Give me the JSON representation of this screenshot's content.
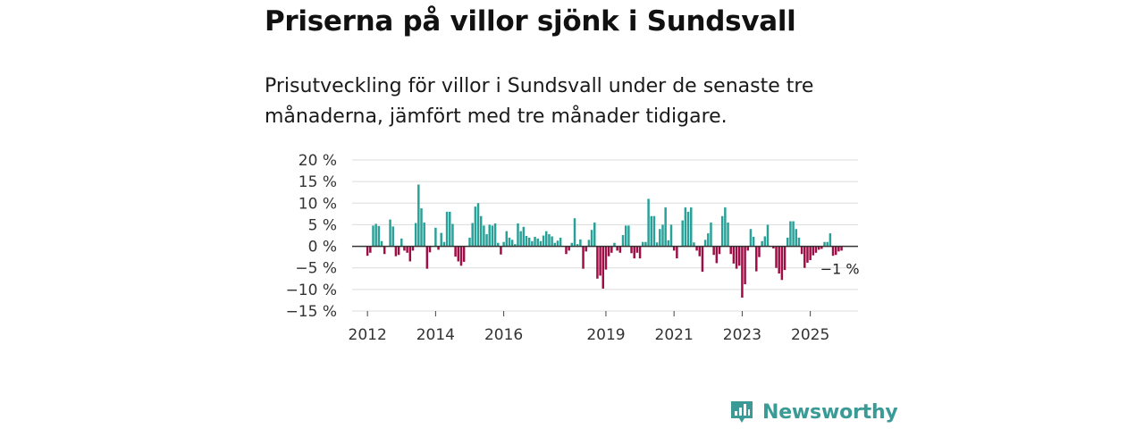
{
  "header": {
    "title": "Priserna på villor sjönk i Sundsvall",
    "subtitle": "Prisutveckling för villor i Sundsvall under de senaste tre månaderna, jämfört med tre månader tidigare."
  },
  "brand": {
    "name": "Newsworthy",
    "icon": "newsworthy-logo-icon"
  },
  "colors": {
    "positive": "#2aa198",
    "negative": "#9e0d45",
    "grid": "#dcdcdc",
    "zero": "#333333",
    "brand": "#3a9b96"
  },
  "chart_data": {
    "type": "bar",
    "title": "Priserna på villor sjönk i Sundsvall",
    "xlabel": "",
    "ylabel": "",
    "ylim": [
      -15,
      20
    ],
    "yticks": [
      20,
      15,
      10,
      5,
      0,
      -5,
      -10,
      -15
    ],
    "ytick_labels": [
      "20 %",
      "15 %",
      "10 %",
      "5 %",
      "0 %",
      "−5 %",
      "−10 %",
      "−15 %"
    ],
    "x_start": 2012.0,
    "x_step": 0.083333,
    "xlim": [
      2011.55,
      2026.4
    ],
    "xticks": [
      2012,
      2014,
      2016,
      2019,
      2021,
      2023,
      2025
    ],
    "xtick_labels": [
      "2012",
      "2014",
      "2016",
      "2019",
      "2021",
      "2023",
      "2025"
    ],
    "grid": true,
    "end_label": "−1 %",
    "values": [
      -2.2,
      -1.5,
      4.8,
      5.2,
      4.7,
      1.2,
      -1.8,
      null,
      6.2,
      4.6,
      -2.3,
      -2.0,
      1.8,
      -1.0,
      -1.5,
      -3.5,
      -1.0,
      5.4,
      14.3,
      8.8,
      5.5,
      -5.2,
      -1.4,
      null,
      4.3,
      -0.8,
      3.1,
      1.0,
      8.0,
      8.0,
      5.2,
      -2.4,
      -3.5,
      -4.5,
      -3.6,
      null,
      2.0,
      5.4,
      9.2,
      10.0,
      7.0,
      4.8,
      2.8,
      5.0,
      4.8,
      5.3,
      0.8,
      -1.9,
      1.0,
      3.5,
      2.0,
      1.5,
      0.5,
      5.3,
      3.5,
      4.5,
      2.4,
      2.0,
      1.2,
      2.2,
      1.8,
      1.2,
      2.5,
      3.5,
      2.8,
      2.3,
      0.8,
      1.3,
      2.0,
      null,
      -1.8,
      -1.0,
      0.8,
      6.5,
      0.5,
      1.6,
      -5.2,
      -1.2,
      1.5,
      3.8,
      5.5,
      -7.5,
      -6.8,
      -9.8,
      -5.4,
      -2.3,
      -1.5,
      0.8,
      -1.0,
      -1.5,
      2.6,
      4.8,
      4.8,
      -1.6,
      -2.8,
      -1.5,
      -2.8,
      1.0,
      1.0,
      11.0,
      7.0,
      7.0,
      0.9,
      4.0,
      5.0,
      9.0,
      1.4,
      5.0,
      -1.0,
      -2.8,
      null,
      6.0,
      9.0,
      8.0,
      9.0,
      0.9,
      -1.0,
      -2.3,
      -5.9,
      1.5,
      3.0,
      5.5,
      -2.0,
      -3.9,
      -1.8,
      7.0,
      9.0,
      5.5,
      -1.8,
      -4.0,
      -5.2,
      -4.5,
      -11.9,
      -8.8,
      -1.0,
      4.0,
      2.2,
      -5.8,
      -2.5,
      1.2,
      2.3,
      5.0,
      null,
      -0.5,
      -5.0,
      -6.3,
      -7.8,
      -5.5,
      2.0,
      5.8,
      5.8,
      4.0,
      2.0,
      -1.8,
      -5.0,
      -3.8,
      -3.2,
      -2.1,
      -1.5,
      -0.8,
      -0.6,
      1.0,
      1.0,
      3.0,
      -2.2,
      -2.0,
      -1.2,
      -1.0
    ]
  }
}
